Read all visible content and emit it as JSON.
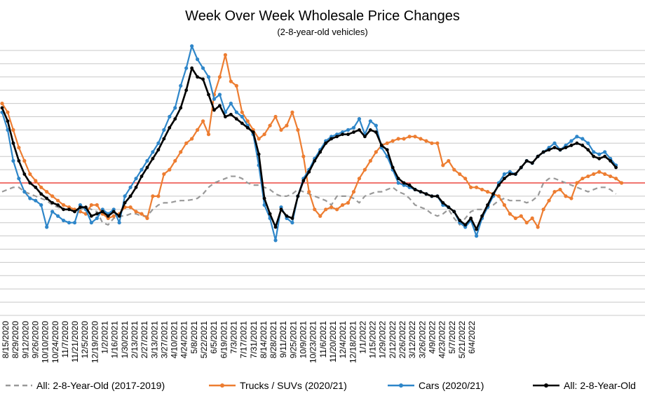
{
  "chart_data": {
    "type": "line",
    "title": "Week Over Week Wholesale Price Changes",
    "subtitle": "(2-8-year-old vehicles)",
    "xlabel": "",
    "ylabel": "",
    "ylim": [
      -3.0,
      3.0
    ],
    "grid": true,
    "reference_line": 0,
    "legend_position": "bottom",
    "x_tick_labels": [
      "8/15/2020",
      "8/29/2020",
      "9/12/2020",
      "9/26/2020",
      "10/10/2020",
      "10/24/2020",
      "11/7/2020",
      "11/21/2020",
      "12/5/2020",
      "12/19/2020",
      "1/2/2021",
      "1/16/2021",
      "1/30/2021",
      "2/13/2021",
      "2/27/2021",
      "3/13/2021",
      "3/27/2021",
      "4/10/2021",
      "4/24/2021",
      "5/8/2021",
      "5/22/2021",
      "6/5/2021",
      "6/19/2021",
      "7/3/2021",
      "7/17/2021",
      "7/31/2021",
      "8/14/2021",
      "8/28/2021",
      "9/11/2021",
      "9/25/2021",
      "10/9/2021",
      "10/23/2021",
      "11/6/2021",
      "11/20/2021",
      "12/4/2021",
      "12/18/2021",
      "1/1/2022",
      "1/15/2022",
      "1/29/2022",
      "2/12/2022",
      "2/26/2022",
      "3/12/2022",
      "3/26/2022",
      "4/9/2022",
      "4/23/2022",
      "5/7/2022",
      "5/21/2022",
      "6/4/2022"
    ],
    "series": [
      {
        "name": "All: 2-8-Year-Old (2017-2019)",
        "color": "#999999",
        "dashed": true,
        "values": [
          -0.2,
          -0.15,
          -0.1,
          -0.1,
          -0.2,
          -0.25,
          -0.3,
          -0.35,
          -0.4,
          -0.5,
          -0.55,
          -0.6,
          -0.6,
          -0.6,
          -0.6,
          -0.55,
          -0.6,
          -0.65,
          -0.9,
          -0.95,
          -0.8,
          -0.75,
          -0.75,
          -0.7,
          -0.7,
          -0.75,
          -0.75,
          -0.6,
          -0.5,
          -0.45,
          -0.45,
          -0.42,
          -0.4,
          -0.4,
          -0.38,
          -0.35,
          -0.25,
          -0.1,
          0.0,
          0.05,
          0.1,
          0.15,
          0.15,
          0.1,
          0.0,
          -0.05,
          -0.05,
          -0.1,
          -0.15,
          -0.25,
          -0.3,
          -0.3,
          -0.25,
          -0.15,
          -0.2,
          -0.25,
          -0.3,
          -0.35,
          -0.4,
          -0.5,
          -0.3,
          -0.3,
          -0.3,
          -0.35,
          -0.45,
          -0.3,
          -0.25,
          -0.2,
          -0.2,
          -0.15,
          -0.1,
          -0.2,
          -0.25,
          -0.35,
          -0.5,
          -0.55,
          -0.6,
          -0.7,
          -0.75,
          -0.7,
          -0.6,
          -0.8,
          -0.95,
          -0.8,
          -0.65,
          -0.6,
          -0.6,
          -0.55,
          -0.5,
          -0.4,
          -0.35,
          -0.4,
          -0.4,
          -0.4,
          -0.45,
          -0.4,
          -0.3,
          0.0,
          0.1,
          0.1,
          0.05,
          0.0,
          -0.05,
          -0.1,
          -0.15,
          -0.2,
          -0.15,
          -0.1,
          -0.1,
          -0.15,
          -0.25
        ]
      },
      {
        "name": "Trucks / SUVs (2020/21)",
        "color": "#ED7D31",
        "dashed": false,
        "values": [
          1.8,
          1.6,
          1.2,
          0.8,
          0.5,
          0.2,
          0.05,
          -0.1,
          -0.2,
          -0.3,
          -0.4,
          -0.5,
          -0.55,
          -0.6,
          -0.65,
          -0.7,
          -0.5,
          -0.5,
          -0.7,
          -0.8,
          -0.75,
          -0.7,
          -0.55,
          -0.55,
          -0.65,
          -0.7,
          -0.8,
          -0.3,
          -0.3,
          0.2,
          0.3,
          0.5,
          0.7,
          0.9,
          1.0,
          1.2,
          1.4,
          1.1,
          2.0,
          2.4,
          2.9,
          2.3,
          2.2,
          1.6,
          1.4,
          1.2,
          1.0,
          1.1,
          1.3,
          1.5,
          1.2,
          1.3,
          1.6,
          1.2,
          0.6,
          -0.2,
          -0.6,
          -0.75,
          -0.6,
          -0.55,
          -0.6,
          -0.5,
          -0.45,
          -0.2,
          0.1,
          0.3,
          0.5,
          0.7,
          0.85,
          0.9,
          0.95,
          1.0,
          1.0,
          1.05,
          1.05,
          1.0,
          0.95,
          0.9,
          0.9,
          0.4,
          0.5,
          0.3,
          0.2,
          0.1,
          -0.1,
          -0.1,
          -0.15,
          -0.2,
          -0.25,
          -0.3,
          -0.5,
          -0.7,
          -0.8,
          -0.75,
          -0.9,
          -0.8,
          -1.0,
          -0.6,
          -0.4,
          -0.2,
          -0.15,
          -0.3,
          -0.35,
          0.0,
          0.1,
          0.15,
          0.2,
          0.25,
          0.2,
          0.15,
          0.1,
          0.0
        ]
      },
      {
        "name": "Cars (2020/21)",
        "color": "#2E86C9",
        "dashed": false,
        "values": [
          1.6,
          1.2,
          0.5,
          0.1,
          -0.2,
          -0.35,
          -0.4,
          -0.5,
          -1.0,
          -0.65,
          -0.75,
          -0.85,
          -0.9,
          -0.9,
          -0.5,
          -0.6,
          -0.9,
          -0.8,
          -0.6,
          -0.7,
          -0.6,
          -0.9,
          -0.3,
          -0.1,
          0.1,
          0.3,
          0.5,
          0.7,
          0.9,
          1.2,
          1.5,
          1.7,
          2.2,
          2.6,
          3.1,
          2.8,
          2.6,
          2.4,
          1.9,
          2.0,
          1.6,
          1.8,
          1.6,
          1.5,
          1.3,
          1.1,
          0.4,
          -0.5,
          -0.8,
          -1.3,
          -0.55,
          -0.8,
          -0.9,
          -0.3,
          0.1,
          0.3,
          0.55,
          0.75,
          0.95,
          1.05,
          1.1,
          1.15,
          1.2,
          1.25,
          1.45,
          1.1,
          1.4,
          1.3,
          0.8,
          0.6,
          0.3,
          0.0,
          -0.05,
          -0.1,
          -0.15,
          -0.2,
          -0.25,
          -0.3,
          -0.3,
          -0.5,
          -0.55,
          -0.65,
          -0.9,
          -1.0,
          -0.85,
          -1.2,
          -0.8,
          -0.55,
          -0.3,
          0.0,
          0.2,
          0.25,
          0.2,
          0.35,
          0.5,
          0.45,
          0.6,
          0.7,
          0.8,
          0.9,
          0.75,
          0.85,
          0.95,
          1.05,
          1.0,
          0.9,
          0.7,
          0.65,
          0.7,
          0.55,
          0.4
        ]
      },
      {
        "name": "All: 2-8-Year-Old",
        "color": "#000000",
        "dashed": false,
        "values": [
          1.7,
          1.4,
          0.9,
          0.5,
          0.2,
          0.0,
          -0.1,
          -0.25,
          -0.35,
          -0.45,
          -0.5,
          -0.6,
          -0.6,
          -0.65,
          -0.55,
          -0.55,
          -0.75,
          -0.7,
          -0.65,
          -0.75,
          -0.65,
          -0.75,
          -0.45,
          -0.3,
          -0.1,
          0.15,
          0.35,
          0.55,
          0.75,
          1.0,
          1.25,
          1.45,
          1.7,
          2.1,
          2.6,
          2.4,
          2.35,
          2.0,
          1.65,
          1.75,
          1.5,
          1.55,
          1.45,
          1.35,
          1.25,
          1.15,
          0.65,
          -0.35,
          -0.7,
          -1.0,
          -0.6,
          -0.75,
          -0.8,
          -0.3,
          0.05,
          0.25,
          0.5,
          0.7,
          0.9,
          1.0,
          1.05,
          1.1,
          1.1,
          1.15,
          1.2,
          1.05,
          1.2,
          1.15,
          0.85,
          0.75,
          0.35,
          0.1,
          0.0,
          -0.05,
          -0.15,
          -0.2,
          -0.25,
          -0.3,
          -0.3,
          -0.45,
          -0.55,
          -0.65,
          -0.85,
          -0.95,
          -0.8,
          -1.05,
          -0.75,
          -0.5,
          -0.25,
          -0.05,
          0.1,
          0.2,
          0.2,
          0.35,
          0.5,
          0.45,
          0.6,
          0.7,
          0.75,
          0.8,
          0.75,
          0.8,
          0.85,
          0.9,
          0.85,
          0.75,
          0.6,
          0.55,
          0.6,
          0.5,
          0.35
        ]
      }
    ]
  }
}
